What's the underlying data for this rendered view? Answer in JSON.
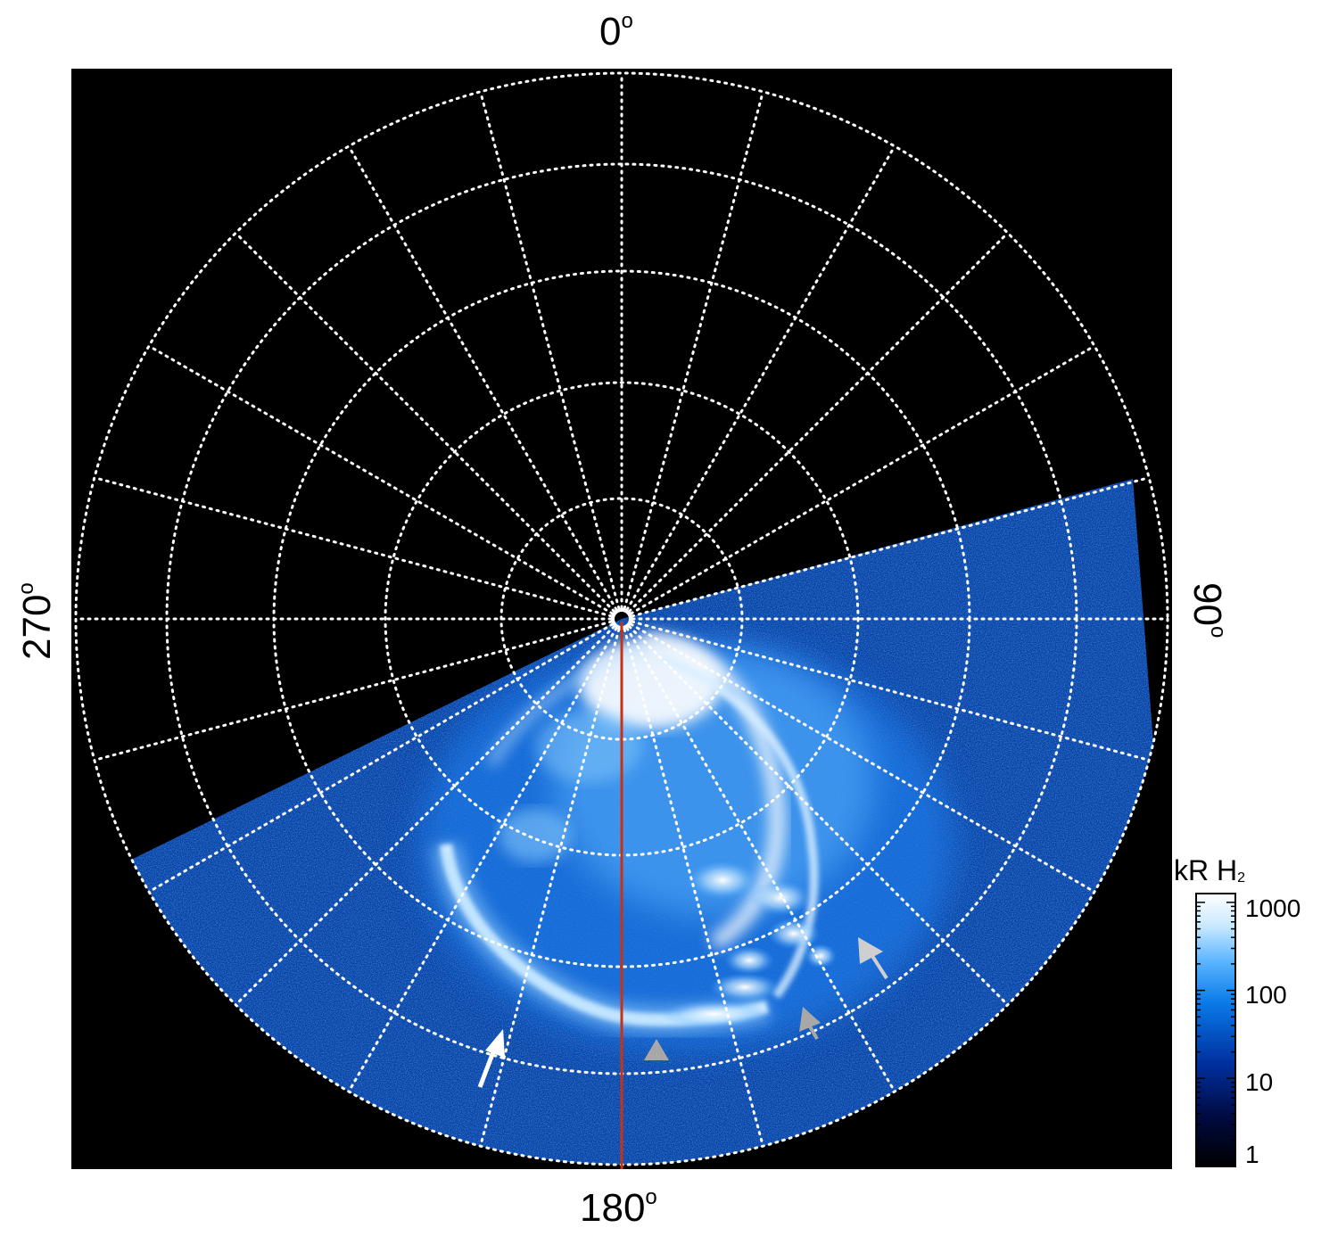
{
  "image": {
    "kind": "Polar projection of auroral ultraviolet emission",
    "longitude_labels": {
      "top": "0",
      "right": "90",
      "bottom": "180",
      "left": "270",
      "degree_symbol": "o"
    }
  },
  "colorbar": {
    "title_main": "kR H",
    "title_sub": "2",
    "ticks": [
      "1000",
      "100",
      "10",
      "1"
    ],
    "scale": "log",
    "colors": [
      "#000000",
      "#000a40",
      "#0030a0",
      "#0a7ae8",
      "#5ab4ff",
      "#c8e8ff",
      "#ffffff"
    ]
  },
  "overlay": {
    "meridian_line_color": "#c83214",
    "grid_color": "#ffffff",
    "arrow_white": "#ffffff",
    "arrow_gray": "#a8a8a8"
  }
}
